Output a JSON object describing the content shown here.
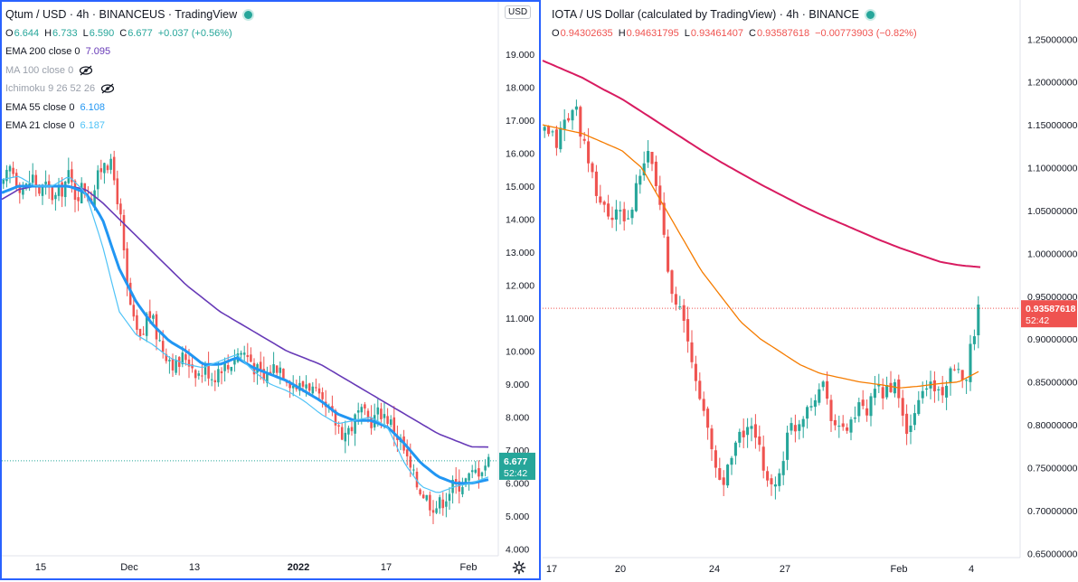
{
  "left": {
    "title": "Qtum / USD · 4h · BINANCEUS · TradingView",
    "ohlc": {
      "o_label": "O",
      "o": "6.644",
      "h_label": "H",
      "h": "6.733",
      "l_label": "L",
      "l": "6.590",
      "c_label": "C",
      "c": "6.677",
      "change": "+0.037 (+0.56%)"
    },
    "indicators": [
      {
        "name": "EMA 200 close 0",
        "value": "7.095",
        "color": "#673ab7"
      },
      {
        "name": "MA 100 close 0",
        "value": "",
        "hidden": true
      },
      {
        "name": "Ichimoku 9 26 52 26",
        "value": "",
        "hidden": true
      },
      {
        "name": "EMA 55 close 0",
        "value": "6.108",
        "color": "#2196f3"
      },
      {
        "name": "EMA 21 close 0",
        "value": "6.187",
        "color": "#4fc3f7"
      }
    ],
    "currency_button": "USD",
    "last_price": "6.677",
    "countdown": "52:42",
    "price_tag_color": "#26a69a"
  },
  "right": {
    "title": "IOTA / US Dollar (calculated by TradingView) · 4h · BINANCE",
    "ohlc": {
      "o_label": "O",
      "o": "0.94302635",
      "h_label": "H",
      "h": "0.94631795",
      "l_label": "L",
      "l": "0.93461407",
      "c_label": "C",
      "c": "0.93587618",
      "change": "−0.00773903 (−0.82%)"
    },
    "last_price": "0.93587618",
    "countdown": "52:42",
    "price_tag_color": "#ef5350"
  },
  "chart_data": [
    {
      "type": "candlestick",
      "symbol": "Qtum / USD",
      "interval": "4h",
      "ylim": [
        3.8,
        19.6
      ],
      "y_ticks": [
        "4.000",
        "5.000",
        "6.000",
        "7.000",
        "8.000",
        "9.000",
        "10.000",
        "11.000",
        "12.000",
        "13.000",
        "14.000",
        "15.000",
        "16.000",
        "17.000",
        "18.000",
        "19.000"
      ],
      "x_ticks": [
        "15",
        "Dec",
        "13",
        "2022",
        "17",
        "Feb"
      ],
      "close_series": [
        15.0,
        15.6,
        15.1,
        14.9,
        15.3,
        14.8,
        15.0,
        14.6,
        14.9,
        15.3,
        14.7,
        15.0,
        14.6,
        15.2,
        15.9,
        15.5,
        14.4,
        12.0,
        10.8,
        10.2,
        11.3,
        10.6,
        10.1,
        9.8,
        9.5,
        9.9,
        9.6,
        9.3,
        9.5,
        9.2,
        9.6,
        9.5,
        9.9,
        10.0,
        9.8,
        9.4,
        9.1,
        9.5,
        9.6,
        9.3,
        9.0,
        8.9,
        9.1,
        8.7,
        8.3,
        8.1,
        7.8,
        7.5,
        7.7,
        8.1,
        8.0,
        7.9,
        8.2,
        8.0,
        7.6,
        7.2,
        6.5,
        6.0,
        5.7,
        5.4,
        5.3,
        5.6,
        5.9,
        6.0,
        6.1,
        6.3,
        6.5,
        6.677
      ],
      "ema_200": [
        14.6,
        14.9,
        15.0,
        15.0,
        15.0,
        14.9,
        14.5,
        14.0,
        13.5,
        13.0,
        12.5,
        12.0,
        11.6,
        11.2,
        10.9,
        10.6,
        10.3,
        10.0,
        9.8,
        9.6,
        9.3,
        9.0,
        8.7,
        8.4,
        8.1,
        7.8,
        7.5,
        7.3,
        7.1,
        7.095
      ],
      "ema_55": [
        14.8,
        15.0,
        15.0,
        15.0,
        15.0,
        14.8,
        14.0,
        12.5,
        11.5,
        10.8,
        10.3,
        10.0,
        9.6,
        9.6,
        9.8,
        9.5,
        9.3,
        9.1,
        8.8,
        8.5,
        8.1,
        7.9,
        7.9,
        7.7,
        7.2,
        6.6,
        6.2,
        6.0,
        6.0,
        6.108
      ],
      "ema_21": [
        15.2,
        15.3,
        15.0,
        15.0,
        15.3,
        14.8,
        13.2,
        11.2,
        10.5,
        10.2,
        9.8,
        9.6,
        9.5,
        9.7,
        9.9,
        9.4,
        9.0,
        8.8,
        8.5,
        8.1,
        7.8,
        7.9,
        8.0,
        7.7,
        6.6,
        5.9,
        5.7,
        5.9,
        6.0,
        6.187
      ],
      "colors": {
        "up": "#26a69a",
        "down": "#ef5350"
      }
    },
    {
      "type": "candlestick",
      "symbol": "IOTA / US Dollar",
      "interval": "4h",
      "ylim": [
        0.645,
        1.263
      ],
      "y_ticks": [
        "0.65000000",
        "0.70000000",
        "0.75000000",
        "0.80000000",
        "0.85000000",
        "0.90000000",
        "0.95000000",
        "1.00000000",
        "1.05000000",
        "1.10000000",
        "1.15000000",
        "1.20000000",
        "1.25000000"
      ],
      "x_ticks": [
        "17",
        "20",
        "24",
        "27",
        "Feb",
        "4"
      ],
      "close_series": [
        1.14,
        1.135,
        1.13,
        1.15,
        1.16,
        1.17,
        1.14,
        1.1,
        1.08,
        1.06,
        1.05,
        1.04,
        1.045,
        1.04,
        1.05,
        1.08,
        1.1,
        1.12,
        1.08,
        1.04,
        0.98,
        0.95,
        0.93,
        0.9,
        0.86,
        0.84,
        0.8,
        0.77,
        0.74,
        0.73,
        0.77,
        0.78,
        0.79,
        0.8,
        0.78,
        0.76,
        0.74,
        0.72,
        0.75,
        0.78,
        0.8,
        0.8,
        0.82,
        0.83,
        0.84,
        0.85,
        0.82,
        0.8,
        0.79,
        0.8,
        0.81,
        0.82,
        0.81,
        0.83,
        0.84,
        0.84,
        0.85,
        0.83,
        0.8,
        0.79,
        0.82,
        0.84,
        0.85,
        0.84,
        0.84,
        0.85,
        0.86,
        0.855,
        0.86,
        0.9,
        0.935
      ],
      "ema_200": [
        1.225,
        1.215,
        1.205,
        1.192,
        1.18,
        1.165,
        1.15,
        1.135,
        1.12,
        1.106,
        1.093,
        1.08,
        1.068,
        1.056,
        1.045,
        1.035,
        1.025,
        1.015,
        1.006,
        0.998,
        0.99,
        0.986,
        0.984
      ],
      "ema_50": [
        1.15,
        1.145,
        1.14,
        1.13,
        1.12,
        1.1,
        1.06,
        1.02,
        0.98,
        0.95,
        0.92,
        0.9,
        0.885,
        0.87,
        0.86,
        0.855,
        0.85,
        0.847,
        0.843,
        0.845,
        0.848,
        0.85,
        0.862
      ],
      "colors": {
        "up": "#26a69a",
        "down": "#ef5350",
        "ema_200": "#d81b60",
        "ema_50": "#f57c00"
      }
    }
  ]
}
